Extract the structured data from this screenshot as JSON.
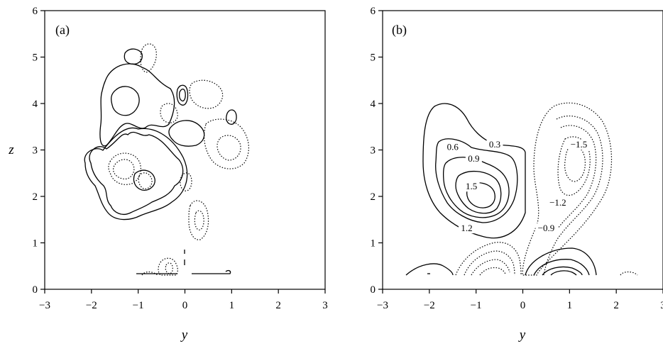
{
  "chart_data": [
    {
      "type": "contour",
      "panel_label": "(a)",
      "xlabel": "y",
      "ylabel": "z",
      "xlim": [
        -3,
        3
      ],
      "ylim": [
        0,
        6
      ],
      "xticks": [
        "−3",
        "−2",
        "−1",
        "0",
        "1",
        "2",
        "3"
      ],
      "yticks": [
        "0",
        "1",
        "2",
        "3",
        "4",
        "5",
        "6"
      ],
      "line_styles": {
        "positive": "solid",
        "negative": "dotted"
      },
      "contour_labels": []
    },
    {
      "type": "contour",
      "panel_label": "(b)",
      "xlabel": "y",
      "ylabel": "",
      "xlim": [
        -3,
        3
      ],
      "ylim": [
        0,
        6
      ],
      "xticks": [
        "−3",
        "−2",
        "−1",
        "0",
        "1",
        "2",
        "3"
      ],
      "yticks": [
        "0",
        "1",
        "2",
        "3",
        "4",
        "5",
        "6"
      ],
      "line_styles": {
        "positive": "solid",
        "negative": "dotted"
      },
      "contour_labels": [
        {
          "text": "0.6",
          "x": -1.5,
          "y": 3.0
        },
        {
          "text": "0.3",
          "x": -0.6,
          "y": 3.05
        },
        {
          "text": "0.9",
          "x": -1.05,
          "y": 2.75
        },
        {
          "text": "1.5",
          "x": -1.1,
          "y": 2.15
        },
        {
          "text": "1.2",
          "x": -1.2,
          "y": 1.25
        },
        {
          "text": "−1.5",
          "x": 1.2,
          "y": 3.05
        },
        {
          "text": "−1.2",
          "x": 0.75,
          "y": 1.8
        },
        {
          "text": "−0.9",
          "x": 0.5,
          "y": 1.25
        }
      ]
    }
  ]
}
